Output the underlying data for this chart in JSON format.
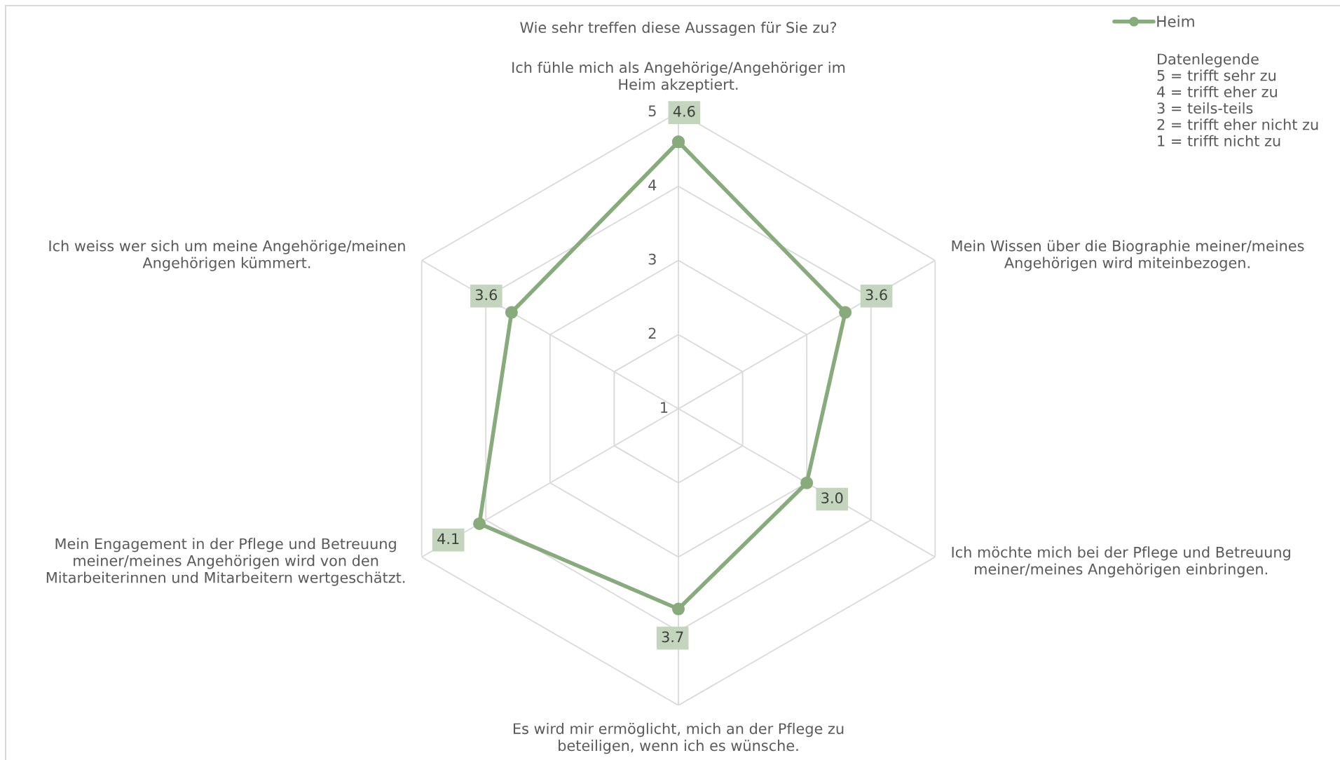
{
  "chart_data": {
    "type": "radar",
    "title": "Wie sehr treffen diese Aussagen für Sie zu?",
    "categories": [
      "Ich fühle mich als Angehörige/Angehöriger im\nHeim akzeptiert.",
      "Mein Wissen über die Biographie meiner/meines\nAngehörigen wird miteinbezogen.",
      "Ich möchte mich bei der Pflege und Betreuung\nmeiner/meines Angehörigen einbringen.",
      "Es wird mir ermöglicht, mich an der Pflege zu\nbeteiligen, wenn ich es wünsche.",
      "Mein Engagement in der Pflege und Betreuung\nmeiner/meines Angehörigen wird von den\nMitarbeiterinnen und Mitarbeitern wertgeschätzt.",
      "Ich weiss wer sich um meine Angehörige/meinen\nAngehörigen kümmert."
    ],
    "series": [
      {
        "name": "Heim",
        "color": "#87ab7b",
        "values": [
          4.6,
          3.6,
          3.0,
          3.7,
          4.1,
          3.6
        ],
        "value_labels": [
          "4.6",
          "3.6",
          "3.0",
          "3.7",
          "4.1",
          "3.6"
        ]
      }
    ],
    "ylim": [
      1,
      5
    ],
    "yticks": [
      1,
      2,
      3,
      4,
      5
    ],
    "grid": true,
    "legend": "top right",
    "marker": "circle",
    "line_style": "solid",
    "annotations": [
      "Datenlegende\n5 = trifft sehr zu\n4 = trifft eher zu\n3 = teils-teils\n2 = trifft eher nicht zu\n1 = trifft nicht zu"
    ]
  }
}
